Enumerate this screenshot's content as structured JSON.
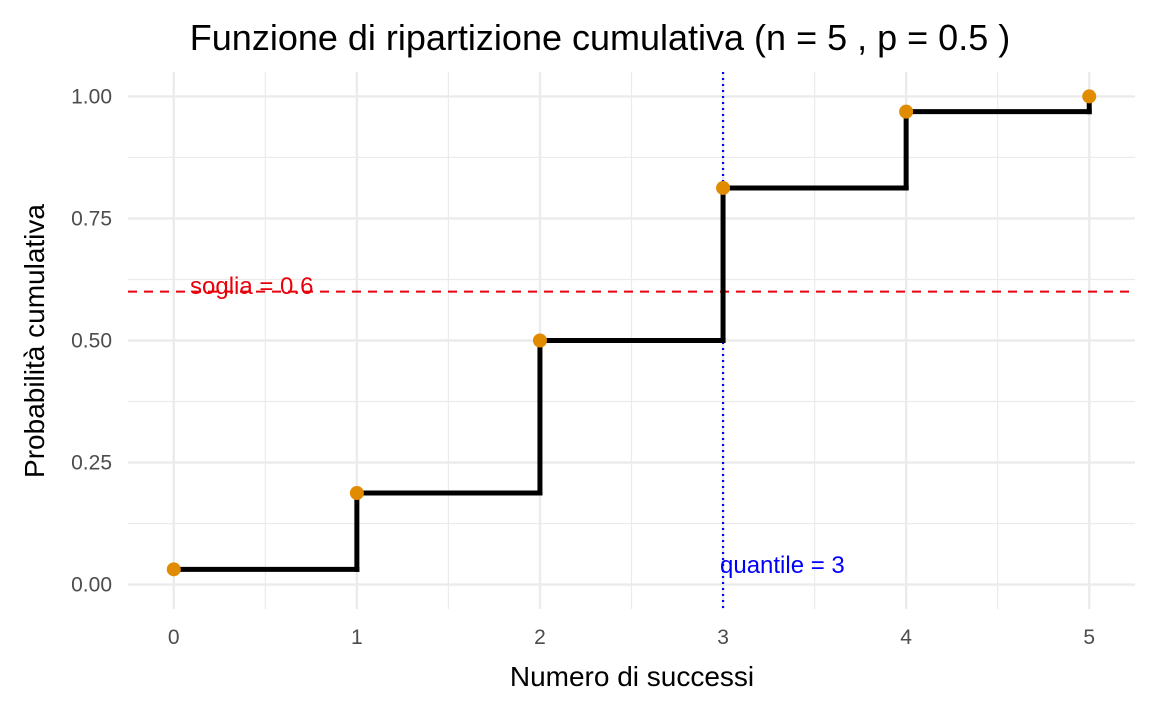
{
  "chart_data": {
    "type": "step",
    "title": "Funzione di ripartizione cumulativa (n = 5 , p = 0.5 )",
    "xlabel": "Numero di successi",
    "ylabel": "Probabilità cumulativa",
    "x": [
      0,
      1,
      2,
      3,
      4,
      5
    ],
    "y": [
      0.03125,
      0.1875,
      0.5,
      0.8125,
      0.96875,
      1.0
    ],
    "xlim": [
      -0.25,
      5.25
    ],
    "ylim": [
      -0.05,
      1.05
    ],
    "x_ticks": [
      0,
      1,
      2,
      3,
      4,
      5
    ],
    "x_tick_labels": [
      "0",
      "1",
      "2",
      "3",
      "4",
      "5"
    ],
    "y_ticks": [
      0,
      0.25,
      0.5,
      0.75,
      1.0
    ],
    "y_tick_labels": [
      "0.00",
      "0.25",
      "0.50",
      "0.75",
      "1.00"
    ],
    "grid": true,
    "threshold": {
      "value": 0.6,
      "label": "soglia = 0.6",
      "color": "#e8000b"
    },
    "quantile": {
      "value": 3,
      "label": "quantile = 3",
      "color": "#0000ff"
    },
    "colors": {
      "step": "#000000",
      "points": "#e08b00",
      "grid": "#ebebeb"
    }
  }
}
